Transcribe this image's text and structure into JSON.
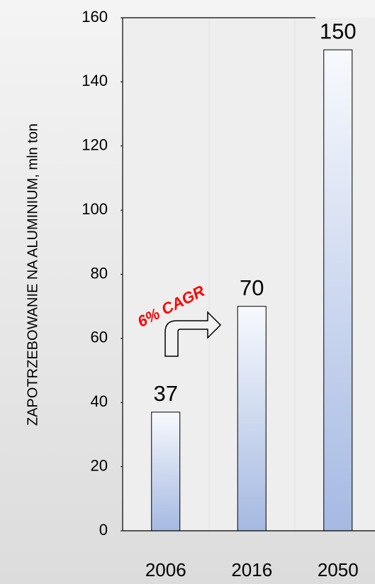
{
  "chart_data": {
    "type": "bar",
    "y_label": "ZAPOTRZEBOWANIE NA ALUMINIUM, mln ton",
    "annotation": "6% CAGR",
    "categories": [
      "2006",
      "2016",
      "2050"
    ],
    "values": [
      37,
      70,
      150
    ],
    "ylim": [
      0,
      160
    ],
    "yticks": [
      0,
      20,
      40,
      60,
      80,
      100,
      120,
      140,
      160
    ],
    "grid": false
  }
}
